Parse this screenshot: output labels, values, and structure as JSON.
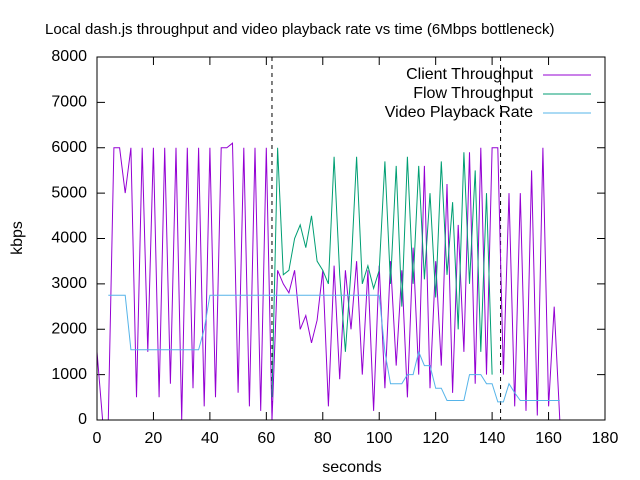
{
  "chart_data": {
    "type": "line",
    "title": "Local dash.js throughput and video playback rate vs time (6Mbps bottleneck)",
    "x_label": "seconds",
    "y_label": "kbps",
    "xlim": [
      0,
      180
    ],
    "xticks": [
      0,
      20,
      40,
      60,
      80,
      100,
      120,
      140,
      160,
      180
    ],
    "ylim": [
      0,
      8000
    ],
    "yticks": [
      0,
      1000,
      2000,
      3000,
      4000,
      5000,
      6000,
      7000,
      8000
    ],
    "legend": "top-right",
    "vlines": [
      62,
      143
    ],
    "x": [
      0,
      2,
      4,
      6,
      8,
      10,
      12,
      14,
      16,
      18,
      20,
      22,
      24,
      26,
      28,
      30,
      32,
      34,
      36,
      38,
      40,
      42,
      44,
      46,
      48,
      50,
      52,
      54,
      56,
      58,
      60,
      62,
      64,
      66,
      68,
      70,
      72,
      74,
      76,
      78,
      80,
      82,
      84,
      86,
      88,
      90,
      92,
      94,
      96,
      98,
      100,
      102,
      104,
      106,
      108,
      110,
      112,
      114,
      116,
      118,
      120,
      122,
      124,
      126,
      128,
      130,
      132,
      134,
      136,
      138,
      140,
      142,
      144,
      146,
      148,
      150,
      152,
      154,
      156,
      158,
      160,
      162,
      164
    ],
    "series": [
      {
        "name": "Client Throughput",
        "color": "#9400d3",
        "values": [
          1500,
          0,
          0,
          6000,
          6000,
          5000,
          6000,
          500,
          6000,
          1500,
          6000,
          500,
          6000,
          800,
          6000,
          0,
          6000,
          700,
          6000,
          300,
          6000,
          500,
          6000,
          6000,
          6100,
          600,
          6000,
          300,
          6000,
          200,
          6000,
          0,
          3300,
          3000,
          2800,
          3300,
          2000,
          2300,
          1700,
          2200,
          3300,
          300,
          3400,
          900,
          3300,
          2000,
          3500,
          1000,
          3300,
          200,
          3400,
          700,
          3500,
          1200,
          3300,
          500,
          3800,
          1000,
          5600,
          700,
          3500,
          1200,
          5200,
          600,
          4300,
          1500,
          5900,
          800,
          6000,
          1000,
          6000,
          6000,
          1000,
          5000,
          300,
          5000,
          200,
          5500,
          100,
          6000,
          300,
          2500,
          0
        ]
      },
      {
        "name": "Flow Throughput",
        "color": "#009e73",
        "values": [
          null,
          null,
          null,
          null,
          null,
          null,
          null,
          null,
          null,
          null,
          null,
          null,
          null,
          null,
          null,
          null,
          null,
          null,
          null,
          null,
          null,
          null,
          null,
          null,
          null,
          null,
          null,
          null,
          null,
          null,
          null,
          500,
          6000,
          3200,
          3300,
          4000,
          4300,
          3800,
          4500,
          3500,
          3300,
          3000,
          5800,
          3200,
          1500,
          3300,
          5800,
          3000,
          3400,
          2900,
          3300,
          5700,
          3000,
          5600,
          2500,
          5800,
          3000,
          5600,
          3100,
          5000,
          2700,
          5700,
          3200,
          4800,
          2000,
          5900,
          3000,
          5500,
          1500,
          5000,
          1000,
          null,
          null,
          null,
          null,
          null,
          null,
          null,
          null,
          null,
          null,
          null,
          null
        ]
      },
      {
        "name": "Video Playback Rate",
        "color": "#56b4e9",
        "values": [
          null,
          null,
          2750,
          2750,
          2750,
          2750,
          1550,
          1550,
          1550,
          1550,
          1550,
          1550,
          1550,
          1550,
          1550,
          1550,
          1550,
          1550,
          1550,
          2000,
          2750,
          2750,
          2750,
          2750,
          2750,
          2750,
          2750,
          2750,
          2750,
          2750,
          2750,
          2750,
          2750,
          2750,
          2750,
          2750,
          2750,
          2750,
          2750,
          2750,
          2750,
          2750,
          2750,
          2750,
          2750,
          2750,
          2750,
          2750,
          2750,
          2750,
          2750,
          1500,
          800,
          800,
          800,
          1000,
          1000,
          1500,
          1200,
          1200,
          700,
          700,
          430,
          430,
          430,
          430,
          1000,
          1000,
          1000,
          800,
          800,
          400,
          400,
          800,
          600,
          430,
          430,
          430,
          430,
          430,
          430,
          430,
          430
        ]
      }
    ]
  }
}
